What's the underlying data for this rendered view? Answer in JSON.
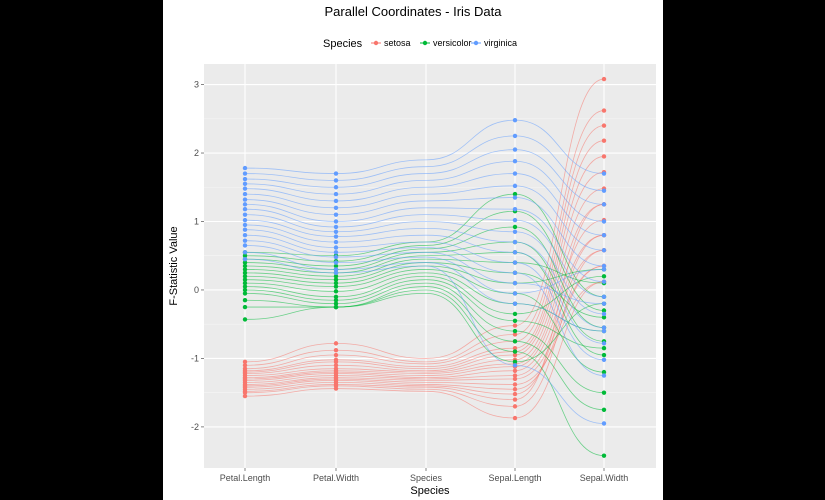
{
  "chart_data": {
    "type": "line",
    "title": "Parallel Coordinates - Iris Data",
    "xlabel": "Species",
    "ylabel": "F-Statistic Value",
    "ylim": [
      -2.6,
      3.3
    ],
    "yticks": [
      -2,
      -1,
      0,
      1,
      2,
      3
    ],
    "ytick_labels": [
      "-2",
      "-1",
      "0",
      "1",
      "2",
      "3"
    ],
    "categories": [
      "Petal.Length",
      "Petal.Width",
      "Species",
      "Sepal.Length",
      "Sepal.Width"
    ],
    "grid": true,
    "legend": {
      "title": "Species",
      "placement": "top",
      "entries": [
        "setosa",
        "versicolor",
        "virginica"
      ]
    },
    "colors": {
      "setosa": "#F8766D",
      "versicolor": "#00BA38",
      "virginica": "#619CFF",
      "panel": "#EBEBEB",
      "grid": "#FFFFFF"
    },
    "series": [
      {
        "name": "setosa",
        "points": [
          [
            -1.05,
            -0.78,
            -1.0,
            -0.52,
            3.08
          ],
          [
            -1.1,
            -0.88,
            -1.05,
            -0.65,
            2.62
          ],
          [
            -1.15,
            -0.95,
            -1.08,
            -0.75,
            2.4
          ],
          [
            -1.18,
            -1.02,
            -1.12,
            -0.85,
            2.18
          ],
          [
            -1.2,
            -1.05,
            -1.15,
            -0.9,
            1.95
          ],
          [
            -1.22,
            -1.1,
            -1.18,
            -0.95,
            1.72
          ],
          [
            -1.25,
            -1.15,
            -1.2,
            -1.02,
            1.48
          ],
          [
            -1.28,
            -1.18,
            -1.22,
            -1.08,
            1.25
          ],
          [
            -1.3,
            -1.2,
            -1.25,
            -1.12,
            1.02
          ],
          [
            -1.32,
            -1.22,
            -1.28,
            -1.18,
            0.8
          ],
          [
            -1.35,
            -1.25,
            -1.3,
            -1.25,
            0.58
          ],
          [
            -1.38,
            -1.28,
            -1.32,
            -1.3,
            0.35
          ],
          [
            -1.4,
            -1.3,
            -1.35,
            -1.38,
            0.12
          ],
          [
            -1.42,
            -1.32,
            -1.38,
            -1.45,
            0.35
          ],
          [
            -1.45,
            -1.35,
            -1.4,
            -1.52,
            0.8
          ],
          [
            -1.48,
            -1.38,
            -1.42,
            -1.6,
            1.25
          ],
          [
            -1.5,
            -1.4,
            -1.45,
            -1.7,
            0.58
          ],
          [
            -1.55,
            -1.44,
            -1.48,
            -1.87,
            0.12
          ]
        ]
      },
      {
        "name": "versicolor",
        "points": [
          [
            0.55,
            0.5,
            0.7,
            1.4,
            -0.1
          ],
          [
            0.5,
            0.42,
            0.65,
            1.15,
            -0.3
          ],
          [
            0.45,
            0.35,
            0.6,
            0.92,
            -0.55
          ],
          [
            0.4,
            0.3,
            0.55,
            0.7,
            -0.75
          ],
          [
            0.35,
            0.25,
            0.5,
            0.55,
            -0.95
          ],
          [
            0.3,
            0.2,
            0.45,
            0.4,
            0.1
          ],
          [
            0.25,
            0.15,
            0.4,
            0.25,
            -0.4
          ],
          [
            0.2,
            0.1,
            0.35,
            0.1,
            0.3
          ],
          [
            0.15,
            0.05,
            0.3,
            -0.05,
            -1.2
          ],
          [
            0.1,
            -0.02,
            0.25,
            -0.2,
            -0.6
          ],
          [
            0.05,
            -0.1,
            0.2,
            -0.35,
            0.2
          ],
          [
            0.0,
            -0.15,
            0.15,
            -0.45,
            -0.85
          ],
          [
            -0.05,
            -0.2,
            0.1,
            -0.6,
            -1.5
          ],
          [
            -0.15,
            -0.25,
            0.05,
            -0.75,
            -1.75
          ],
          [
            -0.25,
            -0.25,
            0.0,
            -0.9,
            -2.42
          ],
          [
            -0.43,
            -0.25,
            -0.05,
            -1.05,
            -0.2
          ]
        ]
      },
      {
        "name": "virginica",
        "points": [
          [
            1.78,
            1.7,
            1.9,
            2.48,
            1.7
          ],
          [
            1.7,
            1.6,
            1.8,
            2.25,
            1.45
          ],
          [
            1.62,
            1.5,
            1.7,
            2.05,
            1.25
          ],
          [
            1.55,
            1.4,
            1.6,
            1.88,
            1.0
          ],
          [
            1.48,
            1.3,
            1.5,
            1.7,
            0.8
          ],
          [
            1.4,
            1.2,
            1.4,
            1.52,
            0.58
          ],
          [
            1.32,
            1.1,
            1.3,
            1.35,
            0.35
          ],
          [
            1.25,
            1.0,
            1.2,
            1.18,
            0.12
          ],
          [
            1.18,
            0.92,
            1.1,
            1.02,
            -0.1
          ],
          [
            1.1,
            0.85,
            1.0,
            0.85,
            -0.35
          ],
          [
            1.02,
            0.78,
            0.9,
            0.7,
            -0.55
          ],
          [
            0.95,
            0.7,
            0.8,
            0.55,
            -0.78
          ],
          [
            0.88,
            0.62,
            0.7,
            0.4,
            -1.02
          ],
          [
            0.8,
            0.55,
            0.62,
            0.25,
            -1.25
          ],
          [
            0.72,
            0.48,
            0.55,
            0.1,
            -0.2
          ],
          [
            0.65,
            0.4,
            0.48,
            -0.05,
            0.3
          ],
          [
            0.55,
            0.3,
            0.4,
            -0.2,
            -0.6
          ],
          [
            0.45,
            0.25,
            0.35,
            -1.1,
            -1.95
          ]
        ]
      }
    ]
  }
}
